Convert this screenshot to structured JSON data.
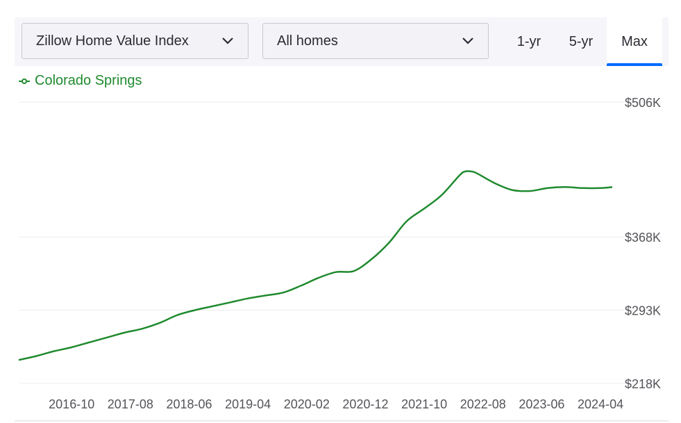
{
  "toolbar": {
    "metric_select": "Zillow Home Value Index",
    "home_type_select": "All homes",
    "ranges": [
      "1-yr",
      "5-yr",
      "Max"
    ],
    "active_range": "Max",
    "accent_color": "#006aff"
  },
  "chart_data": {
    "type": "line",
    "title": "",
    "xlabel": "",
    "ylabel": "",
    "legend_placement": "top-left",
    "grid": true,
    "y_scale": "linear",
    "xlim": [
      "2016-01",
      "2024-06"
    ],
    "ylim": [
      218,
      506
    ],
    "y_ticks": [
      218,
      293,
      368,
      506
    ],
    "y_tick_labels": [
      "$218K",
      "$293K",
      "$368K",
      "$506K"
    ],
    "x_ticks": [
      "2016-10",
      "2017-08",
      "2018-06",
      "2019-04",
      "2020-02",
      "2020-12",
      "2021-10",
      "2022-08",
      "2023-06",
      "2024-04"
    ],
    "series": [
      {
        "name": "Colorado Springs",
        "color": "#1f8a2e",
        "x": [
          "2016-01",
          "2016-04",
          "2016-07",
          "2016-10",
          "2017-01",
          "2017-04",
          "2017-07",
          "2017-10",
          "2018-01",
          "2018-04",
          "2018-07",
          "2018-10",
          "2019-01",
          "2019-04",
          "2019-07",
          "2019-10",
          "2020-01",
          "2020-04",
          "2020-07",
          "2020-10",
          "2021-01",
          "2021-04",
          "2021-07",
          "2021-10",
          "2022-01",
          "2022-04",
          "2022-05",
          "2022-06",
          "2022-07",
          "2022-10",
          "2023-01",
          "2023-04",
          "2023-07",
          "2023-10",
          "2024-01",
          "2024-04",
          "2024-06"
        ],
        "values": [
          242,
          246,
          251,
          255,
          260,
          265,
          270,
          274,
          280,
          288,
          293,
          297,
          301,
          305,
          308,
          311,
          318,
          326,
          332,
          333,
          345,
          362,
          384,
          397,
          411,
          431,
          435,
          435,
          433,
          423,
          416,
          415,
          418,
          419,
          418,
          418,
          419
        ]
      }
    ]
  }
}
